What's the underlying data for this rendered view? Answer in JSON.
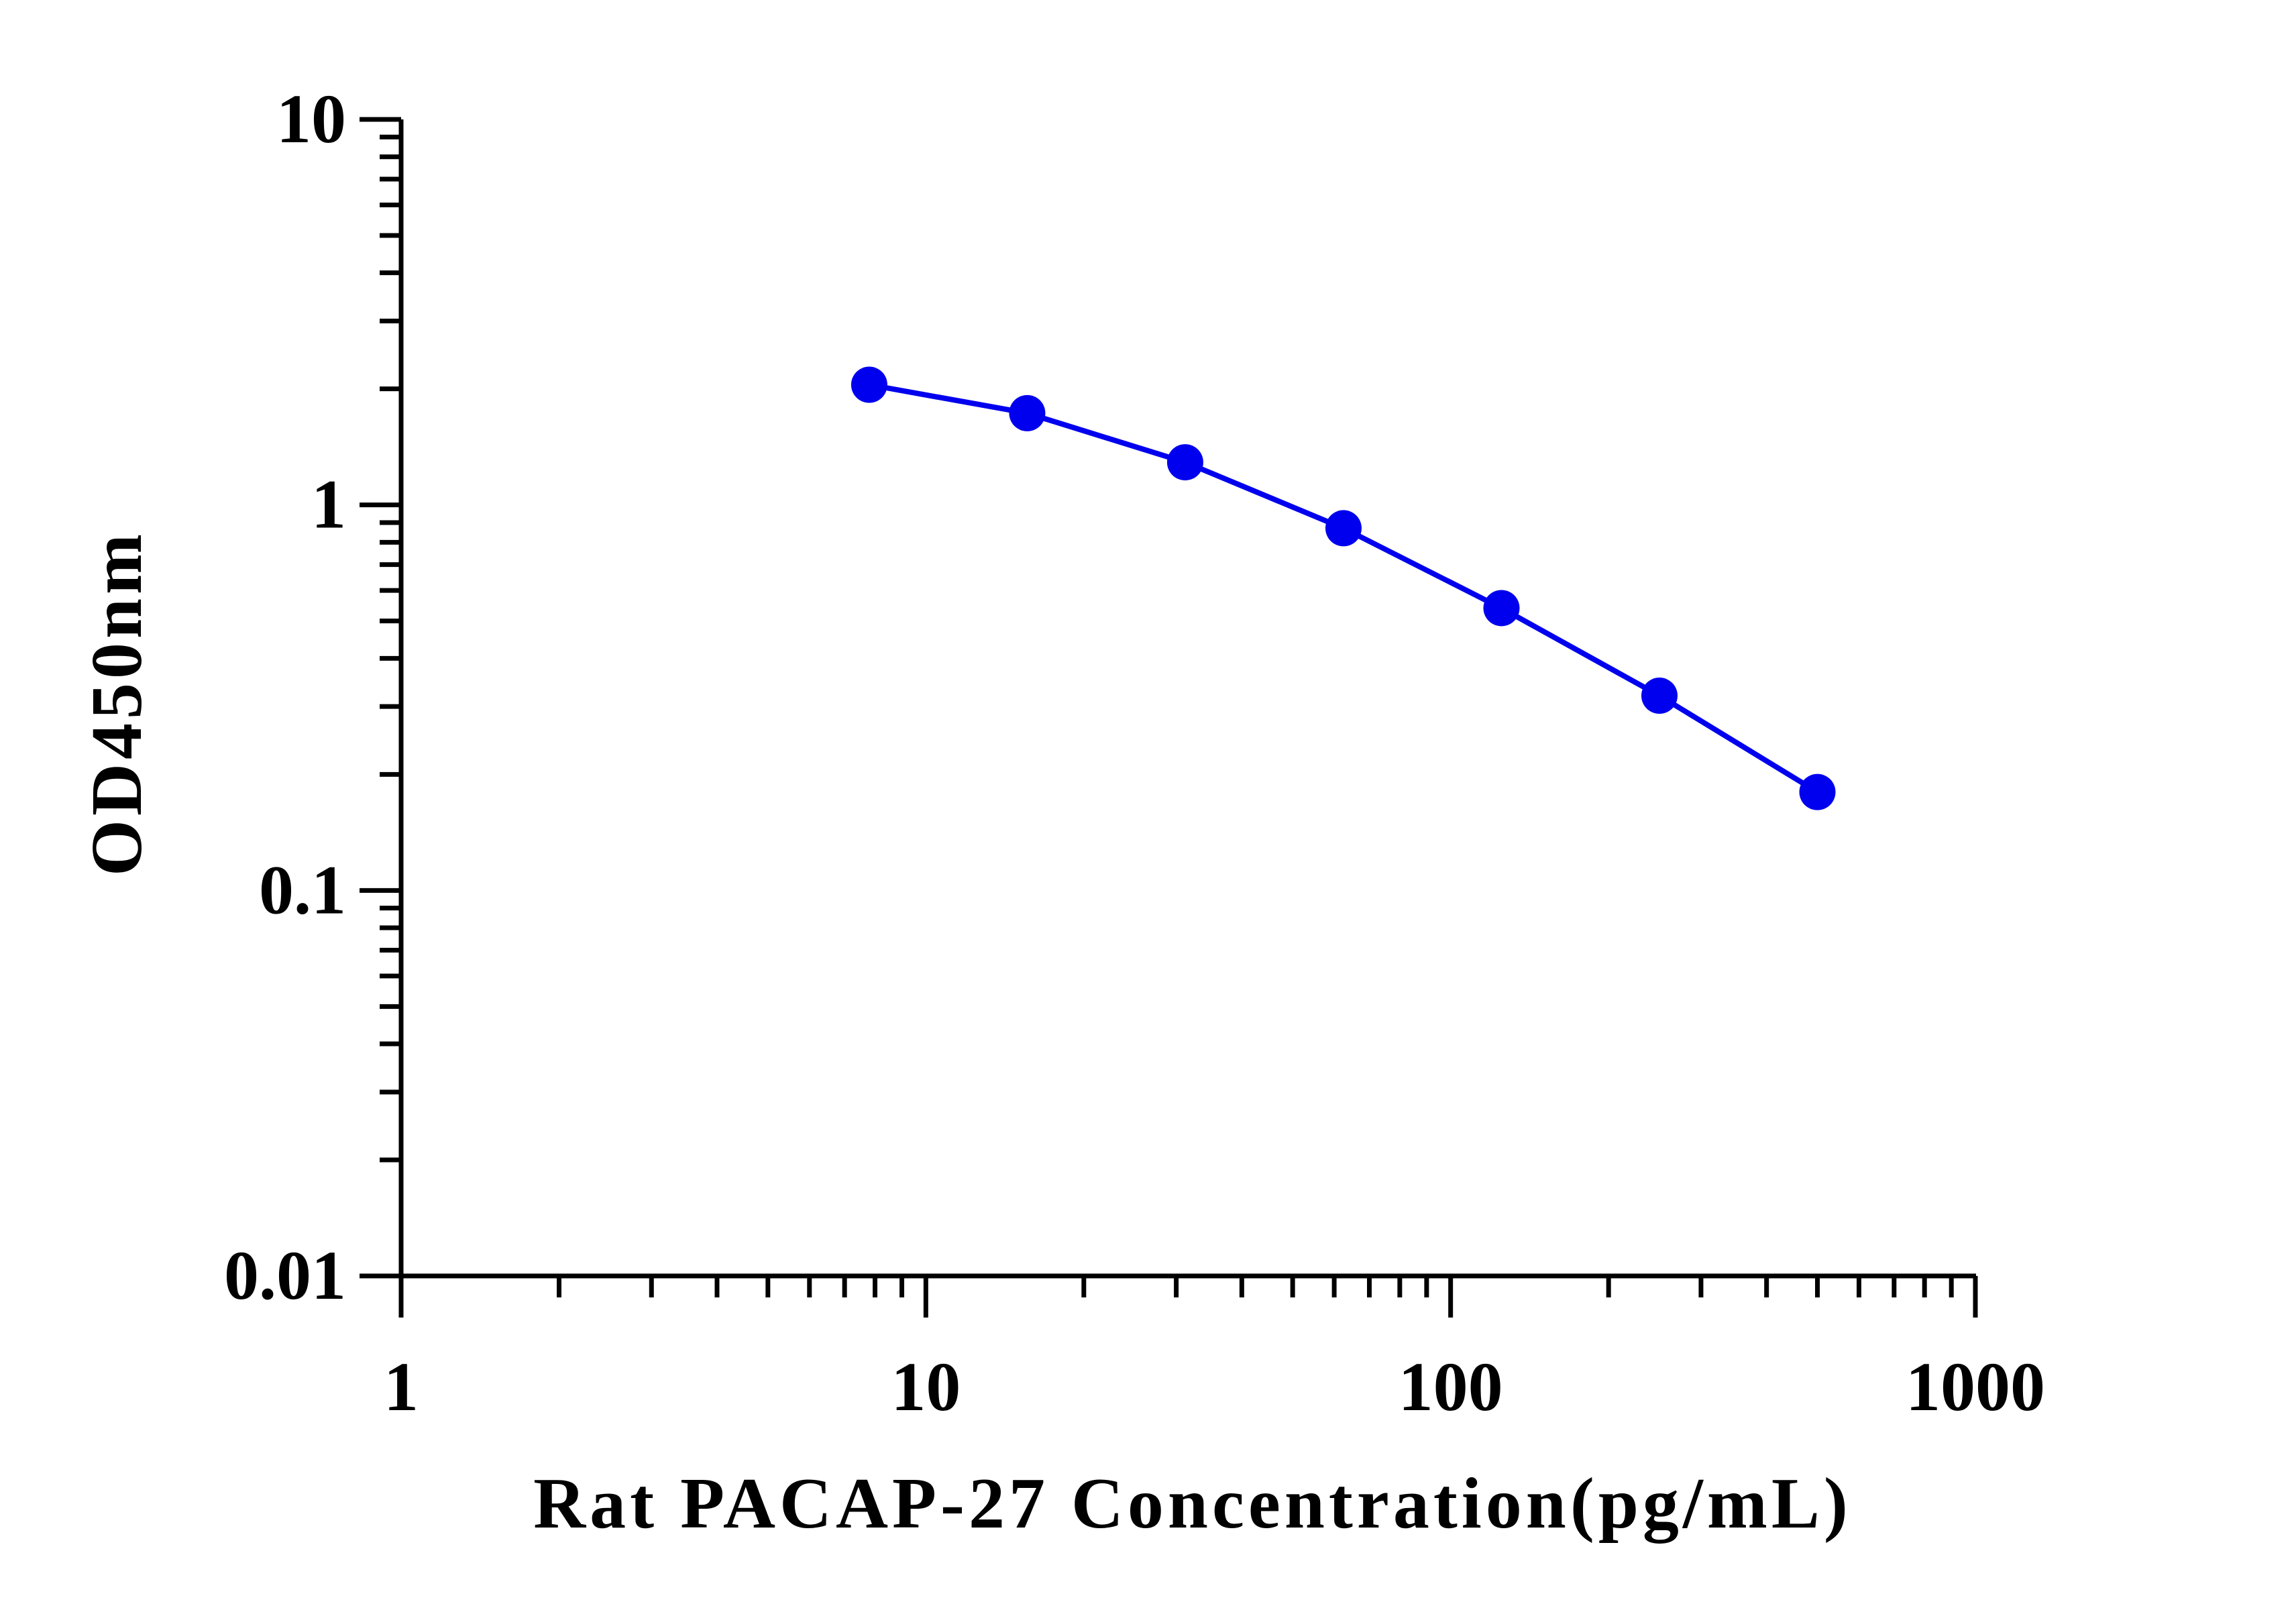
{
  "chart_data": {
    "type": "line",
    "title": "",
    "xlabel": "Rat PACAP-27 Concentration(pg/mL)",
    "ylabel": "OD450nm",
    "xscale": "log",
    "yscale": "log",
    "xlim": [
      1,
      1000
    ],
    "ylim": [
      0.01,
      10
    ],
    "x_tick_labels": [
      "1",
      "10",
      "100",
      "1000"
    ],
    "y_tick_labels": [
      "0.01",
      "0.1",
      "1",
      "10"
    ],
    "grid": false,
    "legend": "none",
    "series": [
      {
        "color": "#0000ee",
        "marker": "circle",
        "points": [
          {
            "x": 7.8,
            "y": 2.05
          },
          {
            "x": 15.6,
            "y": 1.73
          },
          {
            "x": 31.2,
            "y": 1.29
          },
          {
            "x": 62.5,
            "y": 0.87
          },
          {
            "x": 125,
            "y": 0.54
          },
          {
            "x": 250,
            "y": 0.32
          },
          {
            "x": 500,
            "y": 0.18
          }
        ]
      }
    ]
  }
}
